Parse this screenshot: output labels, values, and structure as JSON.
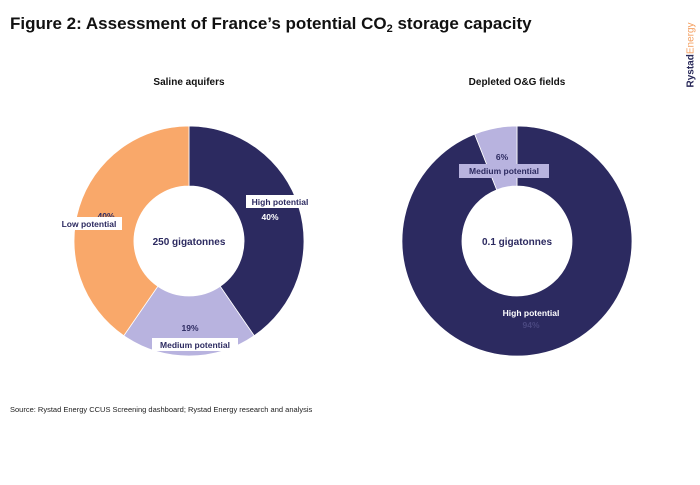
{
  "title": {
    "prefix": "Figure 2: Assessment of France’s potential CO",
    "subscript": "2",
    "suffix": " storage capacity"
  },
  "brand": {
    "bold": "Rystad",
    "light": "Energy"
  },
  "source": "Source: Rystad Energy CCUS Screening dashboard; Rystad Energy research and analysis",
  "colors": {
    "high": "#2c2a60",
    "medium": "#b8b3df",
    "low": "#f9a86a",
    "label_box": "#ffffff"
  },
  "chart_data": [
    {
      "type": "pie",
      "title": "Saline aquifers",
      "center_label": "250 gigatonnes",
      "categories": [
        "High potential",
        "Medium potential",
        "Low potential"
      ],
      "values": [
        40,
        19,
        40
      ],
      "value_labels": [
        "40%",
        "19%",
        "40%"
      ]
    },
    {
      "type": "pie",
      "title": "Depleted O&G fields",
      "center_label": "0.1 gigatonnes",
      "categories": [
        "High potential",
        "Medium potential"
      ],
      "values": [
        94,
        6
      ],
      "value_labels": [
        "94%",
        "6%"
      ]
    }
  ]
}
